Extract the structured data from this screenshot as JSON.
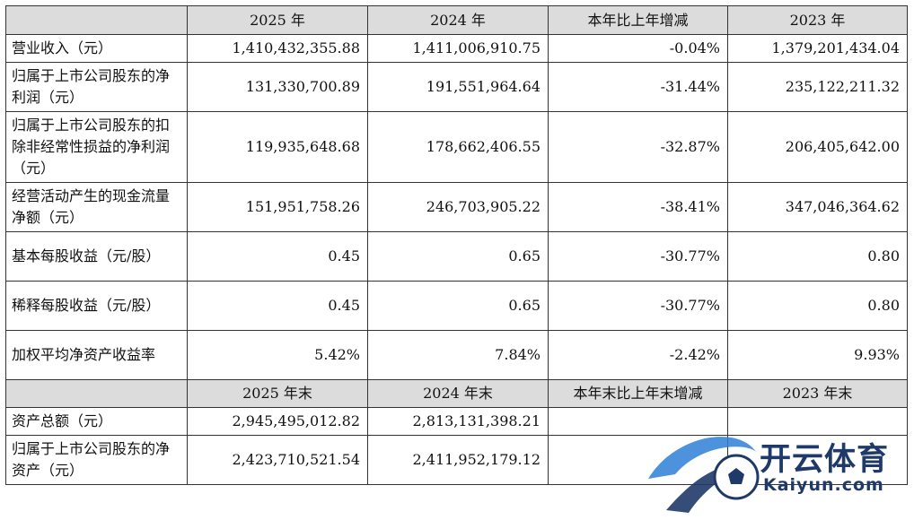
{
  "header": {
    "col1": "",
    "col2": "2025 年",
    "col3": "2024 年",
    "col4": "本年比上年增减",
    "col5": "2023 年"
  },
  "rows": [
    {
      "label": "营业收入（元）",
      "v2025": "1,410,432,355.88",
      "v2024": "1,411,006,910.75",
      "change": "-0.04%",
      "v2023": "1,379,201,434.04"
    },
    {
      "label": "归属于上市公司股东的净利润（元）",
      "v2025": "131,330,700.89",
      "v2024": "191,551,964.64",
      "change": "-31.44%",
      "v2023": "235,122,211.32"
    },
    {
      "label": "归属于上市公司股东的扣除非经常性损益的净利润（元）",
      "v2025": "119,935,648.68",
      "v2024": "178,662,406.55",
      "change": "-32.87%",
      "v2023": "206,405,642.00"
    },
    {
      "label": "经营活动产生的现金流量净额（元）",
      "v2025": "151,951,758.26",
      "v2024": "246,703,905.22",
      "change": "-38.41%",
      "v2023": "347,046,364.62"
    },
    {
      "label": "基本每股收益（元/股）",
      "v2025": "0.45",
      "v2024": "0.65",
      "change": "-30.77%",
      "v2023": "0.80"
    },
    {
      "label": "稀释每股收益（元/股）",
      "v2025": "0.45",
      "v2024": "0.65",
      "change": "-30.77%",
      "v2023": "0.80"
    },
    {
      "label": "加权平均净资产收益率",
      "v2025": "5.42%",
      "v2024": "7.84%",
      "change": "-2.42%",
      "v2023": "9.93%"
    }
  ],
  "header2": {
    "col1": "",
    "col2": "2025 年末",
    "col3": "2024 年末",
    "col4": "本年末比上年末增减",
    "col5": "2023 年末"
  },
  "rows2": [
    {
      "label": "资产总额（元）",
      "v2025": "2,945,495,012.82",
      "v2024": "2,813,131,398.21",
      "change": "",
      "v2023": ""
    },
    {
      "label": "归属于上市公司股东的净资产（元）",
      "v2025": "2,423,710,521.54",
      "v2024": "2,411,952,179.12",
      "change": "",
      "v2023": ""
    }
  ],
  "watermark": {
    "brand": "开云体育",
    "site": "Kaiyun.com",
    "colors": {
      "primary": "#1f3a68",
      "accent": "#2e7fd6"
    }
  }
}
